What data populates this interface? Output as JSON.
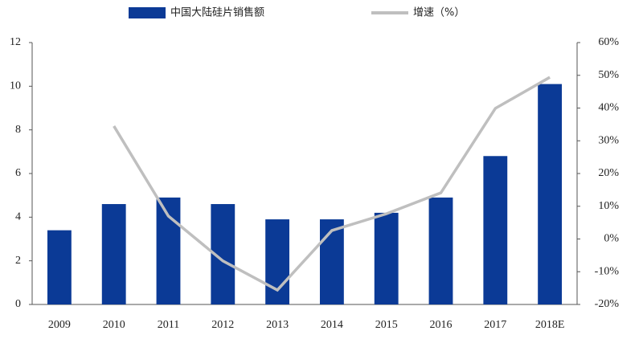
{
  "chart_data": {
    "type": "bar-line",
    "categories": [
      "2009",
      "2010",
      "2011",
      "2012",
      "2013",
      "2014",
      "2015",
      "2016",
      "2017",
      "2018E"
    ],
    "series": [
      {
        "name": "中国大陆硅片销售额",
        "color": "#0b3a96",
        "type": "bar",
        "values": [
          3.4,
          4.6,
          4.9,
          4.6,
          3.9,
          3.9,
          4.2,
          4.9,
          6.8,
          10.1
        ]
      },
      {
        "name": "增速（%）",
        "color": "#bfbfbf",
        "type": "line",
        "axis": "y2",
        "values": [
          null,
          34.5,
          7,
          -6.7,
          -15.6,
          2.6,
          7.7,
          14.1,
          39.9,
          49.4
        ]
      }
    ],
    "ylim": [
      0,
      12
    ],
    "yticks": [
      0,
      2,
      4,
      6,
      8,
      10,
      12
    ],
    "y2lim": [
      -20,
      60
    ],
    "y2ticks": [
      {
        "value": -20,
        "label": "-20%"
      },
      {
        "value": -10,
        "label": "-10%"
      },
      {
        "value": 0,
        "label": "0%"
      },
      {
        "value": 10,
        "label": "10%"
      },
      {
        "value": 20,
        "label": "20%"
      },
      {
        "value": 30,
        "label": "30%"
      },
      {
        "value": 40,
        "label": "40%"
      },
      {
        "value": 50,
        "label": "50%"
      },
      {
        "value": 60,
        "label": "60%"
      }
    ],
    "legend": "top",
    "grid": false
  }
}
